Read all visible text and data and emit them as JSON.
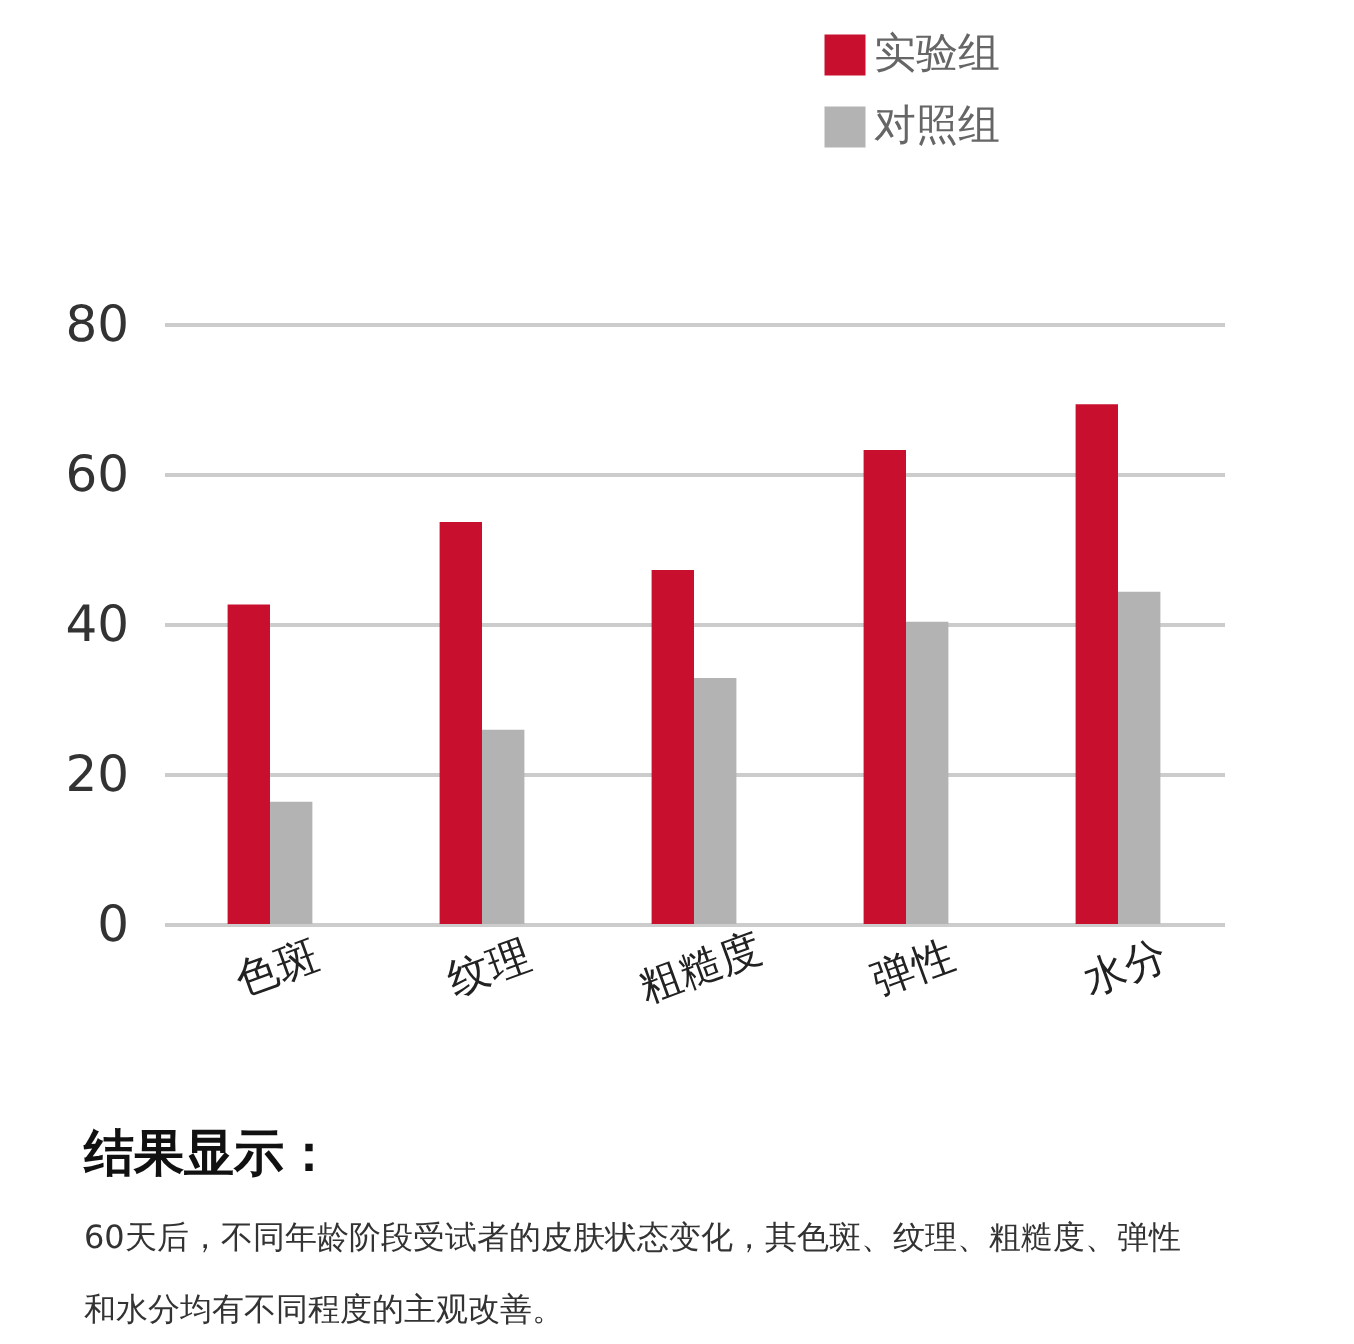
{
  "chart_data": {
    "type": "bar",
    "title": "结果显示：",
    "categories": [
      "色斑",
      "纹理",
      "粗糙度",
      "弹性",
      "水分"
    ],
    "series": [
      {
        "name": "实验组",
        "color": "#c8102e",
        "values": [
          42.6,
          53.6,
          47.2,
          63.2,
          69.3
        ]
      },
      {
        "name": "对照组",
        "color": "#b3b3b3",
        "values": [
          16.3,
          25.9,
          32.8,
          40.3,
          44.3
        ]
      }
    ],
    "ylim": [
      0,
      80
    ],
    "yticks": [
      0,
      20,
      40,
      60,
      80
    ],
    "grid": "y",
    "legend": "top right",
    "annotations": [
      "60天后，不同年龄阶段受试者的皮肤状态变化，其色斑、纹理、粗糙度、弹性和水分均有不同程度的主观改善。"
    ]
  }
}
